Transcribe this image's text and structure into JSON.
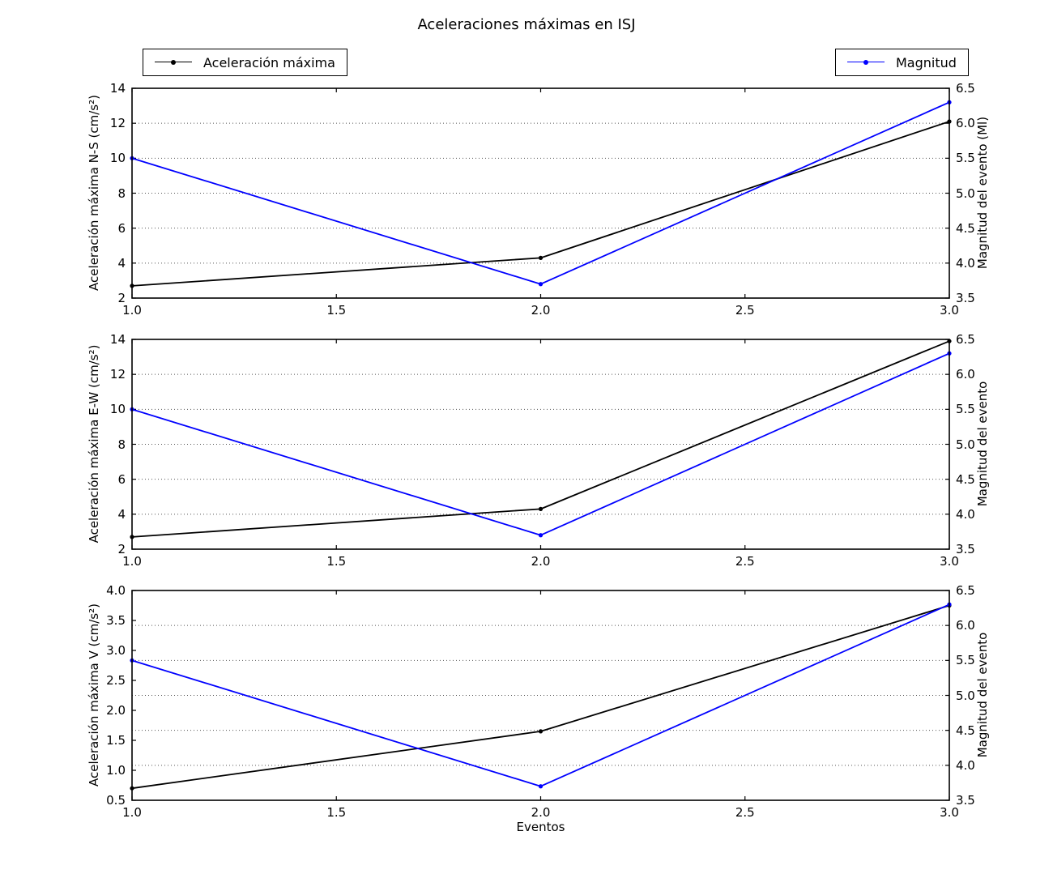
{
  "title": "Aceleraciones máximas en ISJ",
  "xlabel": "Eventos",
  "legends": {
    "acceleration": "Aceleración máxima",
    "magnitude": "Magnitud"
  },
  "colors": {
    "acceleration_line": "#000000",
    "magnitude_line": "#0000ff",
    "grid": "#555555",
    "spine": "#000000"
  },
  "chart_data": [
    {
      "type": "line",
      "x": [
        1.0,
        2.0,
        3.0
      ],
      "xlim": [
        1.0,
        3.0
      ],
      "xticks": {
        "values": [
          1.0,
          1.5,
          2.0,
          2.5,
          3.0
        ],
        "labels": [
          "1.0",
          "1.5",
          "2.0",
          "2.5",
          "3.0"
        ]
      },
      "ylabel_left": "Aceleración máxima N-S (cm/s²)",
      "ylabel_right": "Magnitud del evento (Ml)",
      "ylim_left": [
        2,
        14
      ],
      "yticks_left": {
        "values": [
          2,
          4,
          6,
          8,
          10,
          12,
          14
        ],
        "labels": [
          "2",
          "4",
          "6",
          "8",
          "10",
          "12",
          "14"
        ]
      },
      "ylim_right": [
        3.5,
        6.5
      ],
      "yticks_right": {
        "values": [
          3.5,
          4.0,
          4.5,
          5.0,
          5.5,
          6.0,
          6.5
        ],
        "labels": [
          "3.5",
          "4.0",
          "4.5",
          "5.0",
          "5.5",
          "6.0",
          "6.5"
        ]
      },
      "grid": "horizontal dotted at right-axis ticks",
      "series": [
        {
          "name": "Aceleración máxima",
          "axis": "left",
          "color": "#000000",
          "values": [
            2.7,
            4.3,
            12.1
          ]
        },
        {
          "name": "Magnitud",
          "axis": "right",
          "color": "#0000ff",
          "values": [
            5.5,
            3.7,
            6.3
          ]
        }
      ]
    },
    {
      "type": "line",
      "x": [
        1.0,
        2.0,
        3.0
      ],
      "xlim": [
        1.0,
        3.0
      ],
      "xticks": {
        "values": [
          1.0,
          1.5,
          2.0,
          2.5,
          3.0
        ],
        "labels": [
          "1.0",
          "1.5",
          "2.0",
          "2.5",
          "3.0"
        ]
      },
      "ylabel_left": "Aceleración máxima E-W (cm/s²)",
      "ylabel_right": "Magnitud del evento",
      "ylim_left": [
        2,
        14
      ],
      "yticks_left": {
        "values": [
          2,
          4,
          6,
          8,
          10,
          12,
          14
        ],
        "labels": [
          "2",
          "4",
          "6",
          "8",
          "10",
          "12",
          "14"
        ]
      },
      "ylim_right": [
        3.5,
        6.5
      ],
      "yticks_right": {
        "values": [
          3.5,
          4.0,
          4.5,
          5.0,
          5.5,
          6.0,
          6.5
        ],
        "labels": [
          "3.5",
          "4.0",
          "4.5",
          "5.0",
          "5.5",
          "6.0",
          "6.5"
        ]
      },
      "grid": "horizontal dotted at right-axis ticks",
      "series": [
        {
          "name": "Aceleración máxima",
          "axis": "left",
          "color": "#000000",
          "values": [
            2.7,
            4.3,
            13.9
          ]
        },
        {
          "name": "Magnitud",
          "axis": "right",
          "color": "#0000ff",
          "values": [
            5.5,
            3.7,
            6.3
          ]
        }
      ]
    },
    {
      "type": "line",
      "x": [
        1.0,
        2.0,
        3.0
      ],
      "xlim": [
        1.0,
        3.0
      ],
      "xticks": {
        "values": [
          1.0,
          1.5,
          2.0,
          2.5,
          3.0
        ],
        "labels": [
          "1.0",
          "1.5",
          "2.0",
          "2.5",
          "3.0"
        ]
      },
      "ylabel_left": "Aceleración máxima V (cm/s²)",
      "ylabel_right": "Magnitud del evento",
      "ylim_left": [
        0.5,
        4.0
      ],
      "yticks_left": {
        "values": [
          0.5,
          1.0,
          1.5,
          2.0,
          2.5,
          3.0,
          3.5,
          4.0
        ],
        "labels": [
          "0.5",
          "1.0",
          "1.5",
          "2.0",
          "2.5",
          "3.0",
          "3.5",
          "4.0"
        ]
      },
      "ylim_right": [
        3.5,
        6.5
      ],
      "yticks_right": {
        "values": [
          3.5,
          4.0,
          4.5,
          5.0,
          5.5,
          6.0,
          6.5
        ],
        "labels": [
          "3.5",
          "4.0",
          "4.5",
          "5.0",
          "5.5",
          "6.0",
          "6.5"
        ]
      },
      "grid": "horizontal dotted at right-axis ticks",
      "series": [
        {
          "name": "Aceleración máxima",
          "axis": "left",
          "color": "#000000",
          "values": [
            0.7,
            1.65,
            3.75
          ]
        },
        {
          "name": "Magnitud",
          "axis": "right",
          "color": "#0000ff",
          "values": [
            5.5,
            3.7,
            6.3
          ]
        }
      ]
    }
  ]
}
